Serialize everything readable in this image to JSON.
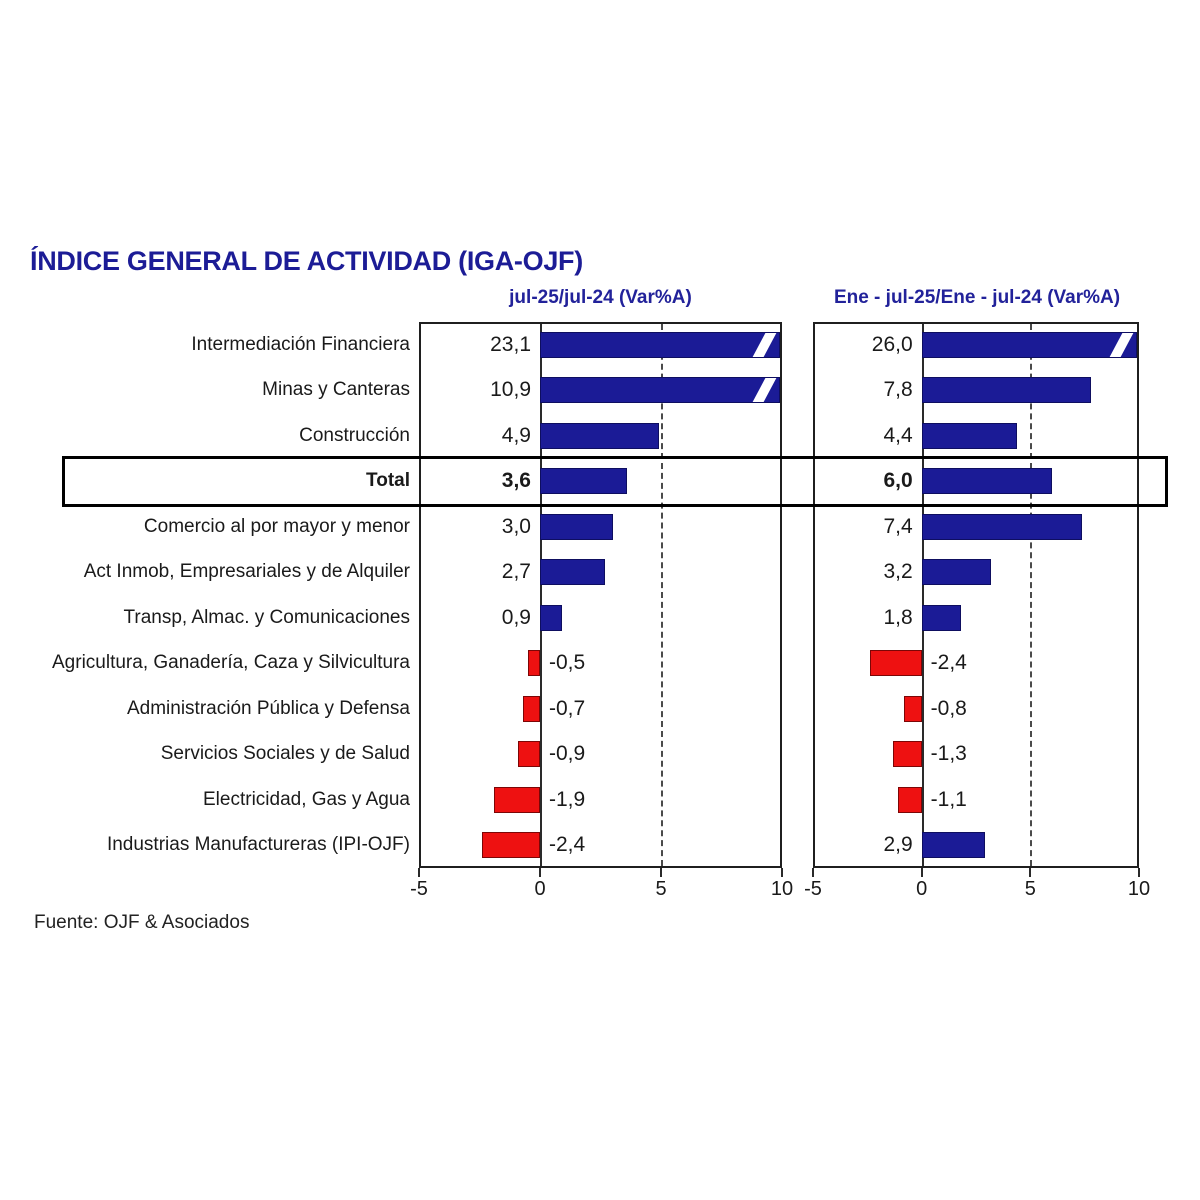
{
  "title": "ÍNDICE GENERAL DE ACTIVIDAD (IGA-OJF)",
  "source": "Fuente: OJF & Asociados",
  "colors": {
    "positive_bar": "#1b1b96",
    "negative_bar": "#ee1111",
    "accent_text": "#22229a",
    "highlight_border": "#000000"
  },
  "chart_data": {
    "type": "bar",
    "orientation": "horizontal",
    "title": "ÍNDICE GENERAL DE ACTIVIDAD (IGA-OJF)",
    "categories": [
      "Intermediación Financiera",
      "Minas y Canteras",
      "Construcción",
      "Total",
      "Comercio al por mayor y menor",
      "Act Inmob, Empresariales y de Alquiler",
      "Transp, Almac. y Comunicaciones",
      "Agricultura, Ganadería, Caza y Silvicultura",
      "Administración Pública y Defensa",
      "Servicios Sociales y de Salud",
      "Electricidad, Gas y Agua",
      "Industrias Manufactureras (IPI-OJF)"
    ],
    "series": [
      {
        "name": "jul-25/jul-24  (Var%A)",
        "values": [
          23.1,
          10.9,
          4.9,
          3.6,
          3.0,
          2.7,
          0.9,
          -0.5,
          -0.7,
          -0.9,
          -1.9,
          -2.4
        ]
      },
      {
        "name": "Ene - jul-25/Ene - jul-24  (Var%A)",
        "values": [
          26.0,
          7.8,
          4.4,
          6.0,
          7.4,
          3.2,
          1.8,
          -2.4,
          -0.8,
          -1.3,
          -1.1,
          2.9
        ]
      }
    ],
    "xlim": [
      -5,
      10
    ],
    "xticks": [
      "-5",
      "0",
      "5",
      "10"
    ],
    "xtick_values": [
      -5,
      0,
      5,
      10
    ],
    "grid": {
      "zero_line": true,
      "dashed_line_at": 5
    },
    "highlighted_category": "Total",
    "highlighted_category_index": 3,
    "decimal_separator": ",",
    "bars_clipped_at_xmax_have_break_mark": true,
    "legend_position": "panel-headers-top",
    "xlabel": "",
    "ylabel": ""
  }
}
